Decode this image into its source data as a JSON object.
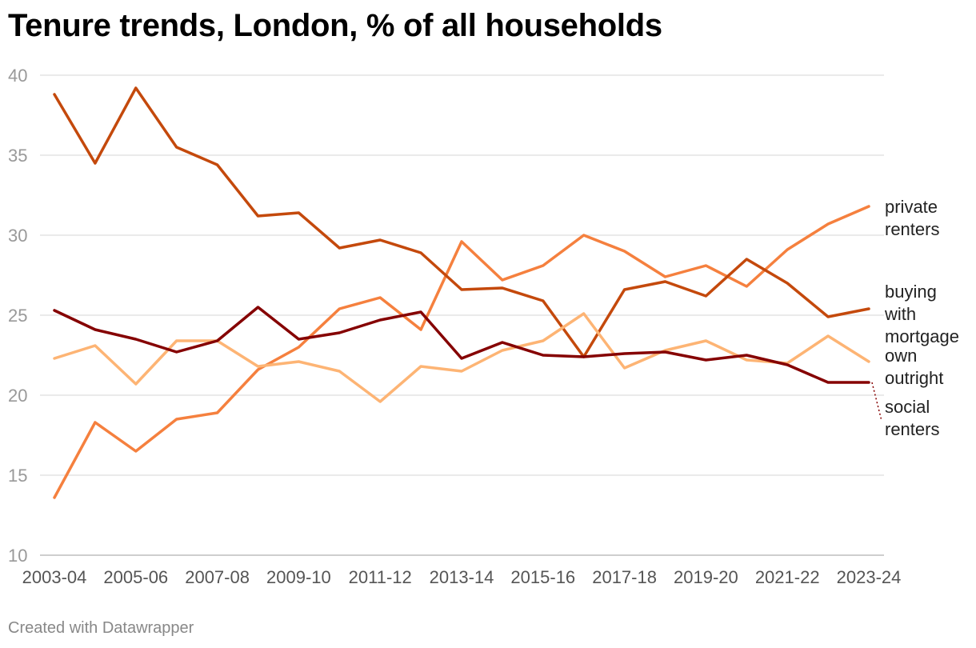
{
  "title": "Tenure trends, London, % of all households",
  "footer": "Created with Datawrapper",
  "chart_data": {
    "type": "line",
    "title": "Tenure trends, London, % of all households",
    "xlabel": "",
    "ylabel": "",
    "ylim": [
      10,
      40
    ],
    "yticks": [
      10,
      15,
      20,
      25,
      30,
      35,
      40
    ],
    "grid": true,
    "x": [
      "2003-04",
      "2004-05",
      "2005-06",
      "2006-07",
      "2007-08",
      "2008-09",
      "2009-10",
      "2010-11",
      "2011-12",
      "2012-13",
      "2013-14",
      "2014-15",
      "2015-16",
      "2016-17",
      "2017-18",
      "2018-19",
      "2019-20",
      "2020-21",
      "2021-22",
      "2022-23",
      "2023-24"
    ],
    "xtick_labels": [
      "2003-04",
      "2005-06",
      "2007-08",
      "2009-10",
      "2011-12",
      "2013-14",
      "2015-16",
      "2017-18",
      "2019-20",
      "2021-22",
      "2023-24"
    ],
    "series": [
      {
        "name": "private renters",
        "color": "#f5803e",
        "label_lines": [
          "private",
          "renters"
        ],
        "values": [
          13.6,
          18.3,
          16.5,
          18.5,
          18.9,
          21.6,
          23.0,
          25.4,
          26.1,
          24.1,
          29.6,
          27.2,
          28.1,
          30.0,
          29.0,
          27.4,
          28.1,
          26.8,
          29.1,
          30.7,
          31.8
        ]
      },
      {
        "name": "buying with mortgage",
        "color": "#c4490c",
        "label_lines": [
          "buying",
          "with",
          "mortgage"
        ],
        "values": [
          38.8,
          34.5,
          39.2,
          35.5,
          34.4,
          31.2,
          31.4,
          29.2,
          29.7,
          28.9,
          26.6,
          26.7,
          25.9,
          22.4,
          26.6,
          27.1,
          26.2,
          28.5,
          27.0,
          24.9,
          25.4
        ]
      },
      {
        "name": "own outright",
        "color": "#fdb474",
        "label_lines": [
          "own",
          "outright"
        ],
        "values": [
          22.3,
          23.1,
          20.7,
          23.4,
          23.4,
          21.8,
          22.1,
          21.5,
          19.6,
          21.8,
          21.5,
          22.8,
          23.4,
          25.1,
          21.7,
          22.8,
          23.4,
          22.2,
          22.0,
          23.7,
          22.1
        ]
      },
      {
        "name": "social renters",
        "color": "#850000",
        "label_lines": [
          "social",
          "renters"
        ],
        "values": [
          25.3,
          24.1,
          23.5,
          22.7,
          23.4,
          25.5,
          23.5,
          23.9,
          24.7,
          25.2,
          22.3,
          23.3,
          22.5,
          22.4,
          22.6,
          22.7,
          22.2,
          22.5,
          21.9,
          20.8,
          20.8
        ]
      }
    ]
  }
}
